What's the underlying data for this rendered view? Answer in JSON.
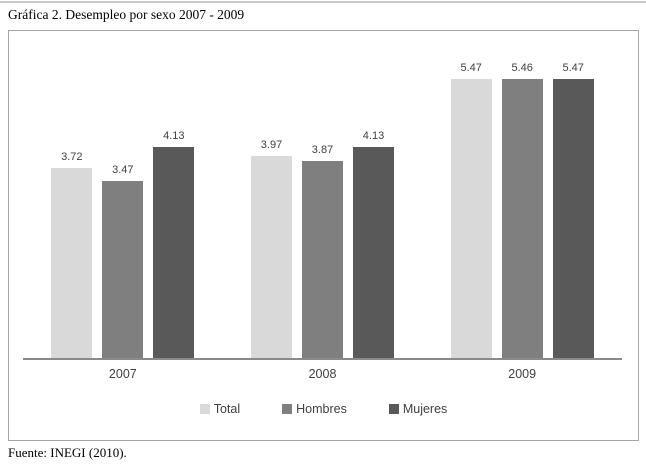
{
  "page": {
    "title": "Gráfica 2. Desempleo por sexo 2007 - 2009",
    "source": "Fuente: INEGI (2010)."
  },
  "chart_data": {
    "type": "bar",
    "title": "Gráfica 2. Desempleo por sexo 2007 - 2009",
    "categories": [
      "2007",
      "2008",
      "2009"
    ],
    "series": [
      {
        "name": "Total",
        "color": "#d9d9d9",
        "values": [
          3.72,
          3.97,
          5.47
        ]
      },
      {
        "name": "Hombres",
        "color": "#7f7f7f",
        "values": [
          3.47,
          3.87,
          5.46
        ]
      },
      {
        "name": "Mujeres",
        "color": "#595959",
        "values": [
          4.13,
          4.13,
          5.47
        ]
      }
    ],
    "ylim": [
      0,
      6.4
    ],
    "grid": false,
    "value_labels": true,
    "value_label_decimals": 2,
    "legend_position": "bottom",
    "xlabel": "",
    "ylabel": "",
    "axis_line_color": "#8a8a8a",
    "label_color": "#404040",
    "source": "Fuente: INEGI (2010)."
  }
}
